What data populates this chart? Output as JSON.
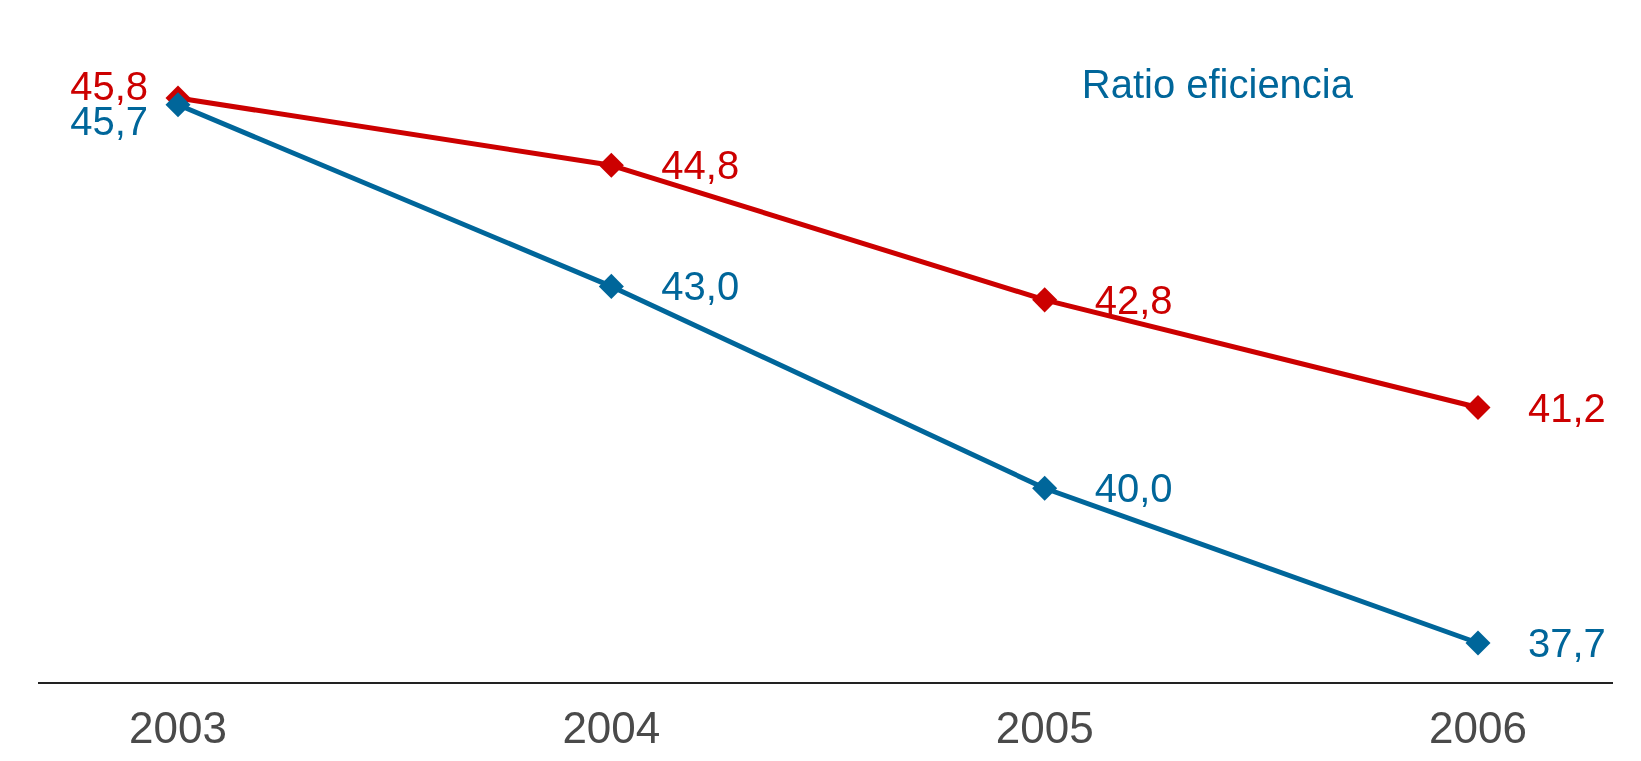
{
  "chart_data": {
    "type": "line",
    "categories": [
      "2003",
      "2004",
      "2005",
      "2006"
    ],
    "series": [
      {
        "color": "#cc0000",
        "values": [
          45.8,
          44.8,
          42.8,
          41.2
        ],
        "value_labels": [
          "45,8",
          "44,8",
          "42,8",
          "41,2"
        ]
      },
      {
        "name": "Ratio eficiencia",
        "color": "#00669a",
        "values": [
          45.7,
          43.0,
          40.0,
          37.7
        ],
        "value_labels": [
          "45,7",
          "43,0",
          "40,0",
          "37,7"
        ]
      }
    ],
    "marker": "diamond",
    "legend": "top right"
  }
}
